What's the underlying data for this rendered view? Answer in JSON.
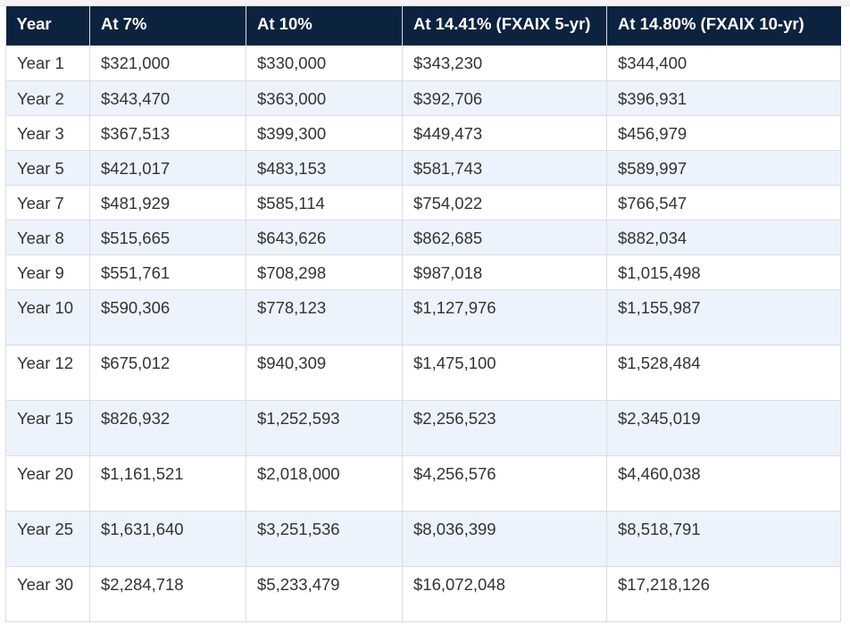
{
  "table": {
    "headers": [
      "Year",
      "At 7%",
      "At 10%",
      "At 14.41% (FXAIX 5-yr)",
      "At 14.80% (FXAIX 10-yr)"
    ],
    "rows": [
      [
        "Year 1",
        "$321,000",
        "$330,000",
        "$343,230",
        "$344,400"
      ],
      [
        "Year 2",
        "$343,470",
        "$363,000",
        "$392,706",
        "$396,931"
      ],
      [
        "Year 3",
        "$367,513",
        "$399,300",
        "$449,473",
        "$456,979"
      ],
      [
        "Year 5",
        "$421,017",
        "$483,153",
        "$581,743",
        "$589,997"
      ],
      [
        "Year 7",
        "$481,929",
        "$585,114",
        "$754,022",
        "$766,547"
      ],
      [
        "Year 8",
        "$515,665",
        "$643,626",
        "$862,685",
        "$882,034"
      ],
      [
        "Year 9",
        "$551,761",
        "$708,298",
        "$987,018",
        "$1,015,498"
      ],
      [
        "Year 10",
        "$590,306",
        "$778,123",
        "$1,127,976",
        "$1,155,987"
      ],
      [
        "Year 12",
        "$675,012",
        "$940,309",
        "$1,475,100",
        "$1,528,484"
      ],
      [
        "Year 15",
        "$826,932",
        "$1,252,593",
        "$2,256,523",
        "$2,345,019"
      ],
      [
        "Year 20",
        "$1,161,521",
        "$2,018,000",
        "$4,256,576",
        "$4,460,038"
      ],
      [
        "Year 25",
        "$1,631,640",
        "$3,251,536",
        "$8,036,399",
        "$8,518,791"
      ],
      [
        "Year 30",
        "$2,284,718",
        "$5,233,479",
        "$16,072,048",
        "$17,218,126"
      ]
    ]
  },
  "colors": {
    "header_bg": "#0c2340",
    "header_text": "#ffffff",
    "row_alt_bg": "#edf3fc",
    "cell_text": "#333333",
    "grid_line": "#dcdcdc"
  }
}
